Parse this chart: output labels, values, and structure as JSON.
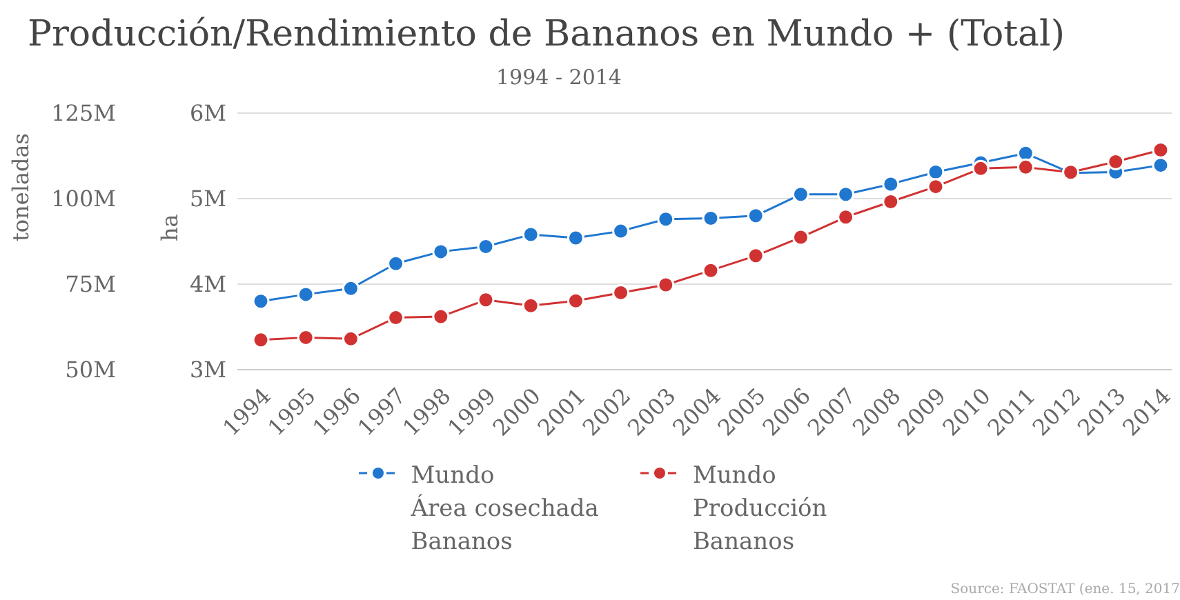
{
  "chart_data": {
    "type": "line",
    "title": "Producción/Rendimiento de Bananos en Mundo + (Total)",
    "subtitle": "1994 - 2014",
    "ylabel": "ha",
    "y2label": "toneladas",
    "categories": [
      "1994",
      "1995",
      "1996",
      "1997",
      "1998",
      "1999",
      "2000",
      "2001",
      "2002",
      "2003",
      "2004",
      "2005",
      "2006",
      "2007",
      "2008",
      "2009",
      "2010",
      "2011",
      "2012",
      "2013",
      "2014"
    ],
    "series": [
      {
        "name": "Mundo\nÁrea cosechada\nBananos",
        "color": "#1f77d0",
        "values": [
          3800000,
          3880000,
          3950000,
          4240000,
          4380000,
          4440000,
          4580000,
          4540000,
          4620000,
          4760000,
          4770000,
          4800000,
          5050000,
          5050000,
          5170000,
          5310000,
          5420000,
          5530000,
          5300000,
          5310000,
          5390000
        ]
      },
      {
        "name": "Mundo\nProducción\nBananos",
        "color": "#d03232",
        "axis": "y2",
        "values": [
          58700000,
          59400000,
          59000000,
          65200000,
          65500000,
          70400000,
          68700000,
          70100000,
          72500000,
          74800000,
          79000000,
          83300000,
          88700000,
          94600000,
          99100000,
          103500000,
          108800000,
          109200000,
          107700000,
          110800000,
          114200000
        ]
      }
    ],
    "ylim": [
      3000000,
      6000000
    ],
    "yticks": [
      {
        "value": 3000000,
        "label": "3M"
      },
      {
        "value": 4000000,
        "label": "4M"
      },
      {
        "value": 5000000,
        "label": "5M"
      },
      {
        "value": 6000000,
        "label": "6M"
      }
    ],
    "y2lim": [
      50000000,
      125000000
    ],
    "y2ticks": [
      {
        "value": 50000000,
        "label": "50M"
      },
      {
        "value": 75000000,
        "label": "75M"
      },
      {
        "value": 100000000,
        "label": "100M"
      },
      {
        "value": 125000000,
        "label": "125M"
      }
    ],
    "grid": "y",
    "legend": "bottom",
    "marker": "circle",
    "line_style": "solid",
    "annotations": [
      "Source: FAOSTAT (ene. 15, 2017"
    ]
  }
}
